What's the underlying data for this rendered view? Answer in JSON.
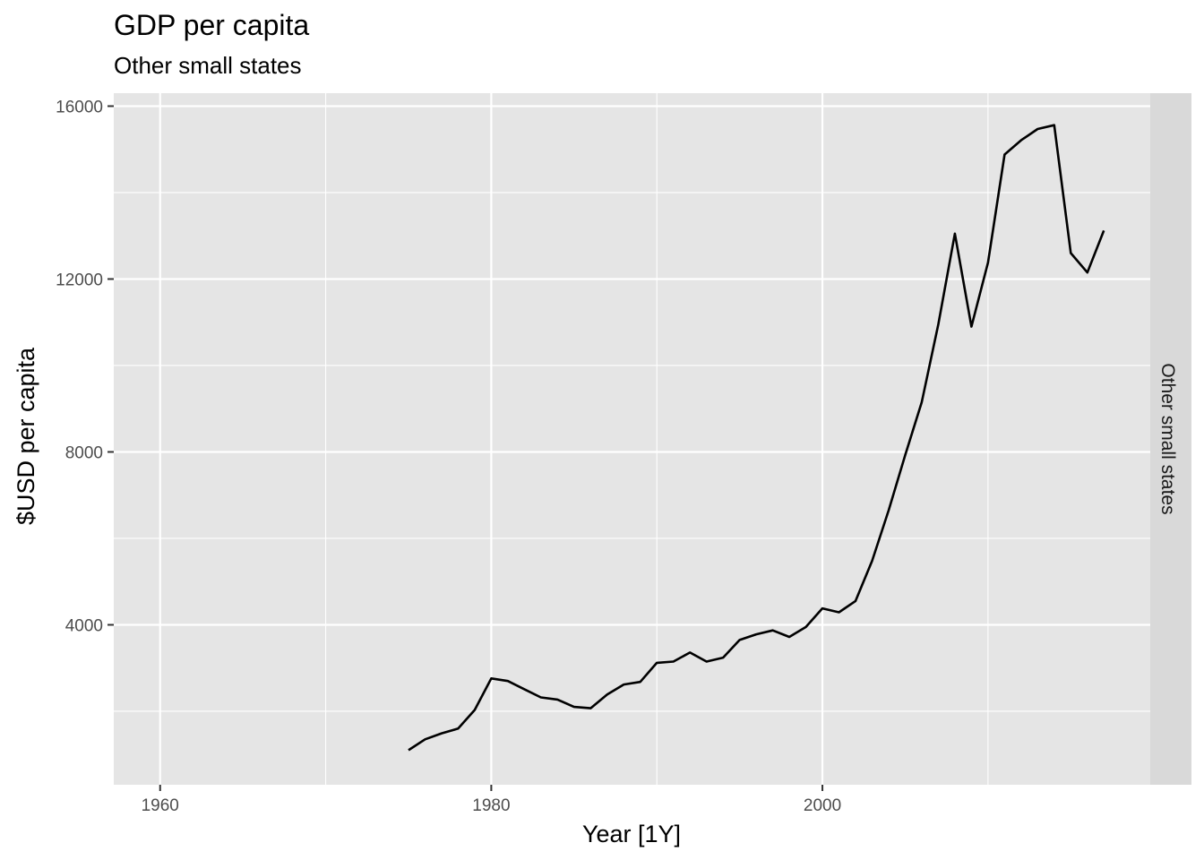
{
  "chart_data": {
    "type": "line",
    "title": "GDP per capita",
    "subtitle": "Other small states",
    "xlabel": "Year [1Y]",
    "ylabel": "$USD per capita",
    "facet_label": "Other small states",
    "xlim": [
      1957.2,
      2019.8
    ],
    "ylim": [
      300,
      16300
    ],
    "x_ticks": [
      1960,
      1980,
      2000
    ],
    "x_tick_labels": [
      "1960",
      "1980",
      "2000"
    ],
    "x_minor_ticks": [
      1970,
      1990,
      2010
    ],
    "y_ticks": [
      4000,
      8000,
      12000,
      16000
    ],
    "y_tick_labels": [
      "4000",
      "8000",
      "12000",
      "16000"
    ],
    "y_minor_ticks": [
      2000,
      6000,
      10000,
      14000
    ],
    "grid": true,
    "colors": {
      "panel_background": "#e5e5e5",
      "grid_line": "#ffffff",
      "strip_background": "#d9d9d9",
      "series_line": "#000000"
    },
    "series": [
      {
        "x": [
          1975,
          1976,
          1977,
          1978,
          1979,
          1980,
          1981,
          1982,
          1983,
          1984,
          1985,
          1986,
          1987,
          1988,
          1989,
          1990,
          1991,
          1992,
          1993,
          1994,
          1995,
          1996,
          1997,
          1998,
          1999,
          2000,
          2001,
          2002,
          2003,
          2004,
          2005,
          2006,
          2007,
          2008,
          2009,
          2010,
          2011,
          2012,
          2013,
          2014,
          2015,
          2016,
          2017
        ],
        "values": [
          1100,
          1350,
          1490,
          1600,
          2030,
          2760,
          2700,
          2510,
          2320,
          2270,
          2100,
          2070,
          2390,
          2620,
          2680,
          3120,
          3150,
          3360,
          3150,
          3240,
          3650,
          3780,
          3870,
          3720,
          3950,
          4380,
          4290,
          4550,
          5480,
          6650,
          7930,
          9150,
          10950,
          13050,
          10900,
          12380,
          14880,
          15210,
          15470,
          15560,
          12600,
          12150,
          13120
        ]
      }
    ]
  }
}
